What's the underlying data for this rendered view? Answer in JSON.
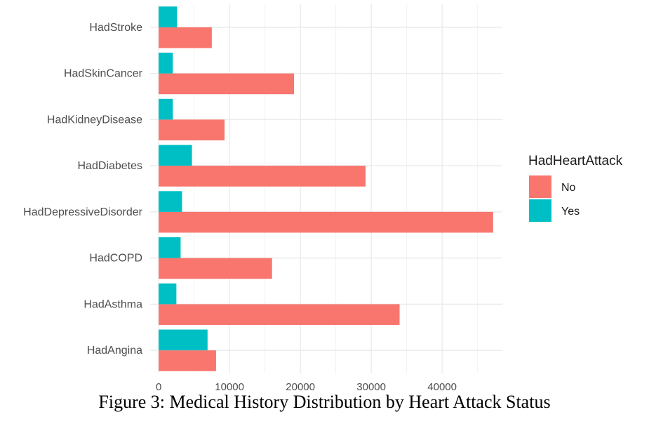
{
  "caption": "Figure 3: Medical History Distribution by Heart Attack Status",
  "chart_data": {
    "type": "bar",
    "orientation": "horizontal",
    "categories": [
      "HadAngina",
      "HadAsthma",
      "HadCOPD",
      "HadDepressiveDisorder",
      "HadDiabetes",
      "HadKidneyDisease",
      "HadSkinCancer",
      "HadStroke"
    ],
    "series": [
      {
        "name": "No",
        "color": "#F8766D",
        "values": [
          8100,
          34000,
          16000,
          47200,
          29200,
          9300,
          19100,
          7500
        ]
      },
      {
        "name": "Yes",
        "color": "#00BFC4",
        "values": [
          6900,
          2500,
          3100,
          3300,
          4700,
          2000,
          2000,
          2600
        ]
      }
    ],
    "x_ticks": [
      0,
      10000,
      20000,
      30000,
      40000
    ],
    "x_tick_labels": [
      "0",
      "10000",
      "20000",
      "30000",
      "40000"
    ],
    "xlim": [
      -1200,
      48500
    ],
    "legend": {
      "title": "HadHeartAttack",
      "position": "right"
    },
    "grid": true
  }
}
